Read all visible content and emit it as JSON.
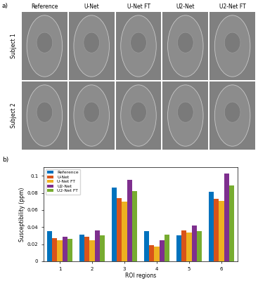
{
  "panel_labels": [
    "a)",
    "b)"
  ],
  "image_grid": {
    "columns": [
      "Reference",
      "U-Net",
      "U-Net FT",
      "U2-Net",
      "U2-Net FT"
    ],
    "rows": [
      "Subject 1",
      "Subject 2"
    ]
  },
  "chart_data": {
    "type": "bar",
    "categories": [
      "1",
      "2",
      "3",
      "4",
      "5",
      "6"
    ],
    "x_label": "ROI regions",
    "y_label": "Susceptibility (ppm)",
    "series": [
      {
        "name": "Reference",
        "color": "#0072BD",
        "values": [
          0.035,
          0.031,
          0.086,
          0.035,
          0.03,
          0.081
        ]
      },
      {
        "name": "U-Net",
        "color": "#D95319",
        "values": [
          0.027,
          0.029,
          0.074,
          0.019,
          0.036,
          0.073
        ]
      },
      {
        "name": "U-Net FT",
        "color": "#EDB120",
        "values": [
          0.025,
          0.025,
          0.07,
          0.017,
          0.034,
          0.071
        ]
      },
      {
        "name": "U2-Net",
        "color": "#7E2F8E",
        "values": [
          0.029,
          0.036,
          0.095,
          0.025,
          0.042,
          0.103
        ]
      },
      {
        "name": "U2-Net FT",
        "color": "#77AC30",
        "values": [
          0.026,
          0.03,
          0.082,
          0.031,
          0.035,
          0.089
        ]
      }
    ],
    "ylim": [
      0,
      0.11
    ],
    "yticks": [
      0,
      0.02,
      0.04,
      0.06,
      0.08,
      0.1
    ],
    "legend": "upper left"
  }
}
